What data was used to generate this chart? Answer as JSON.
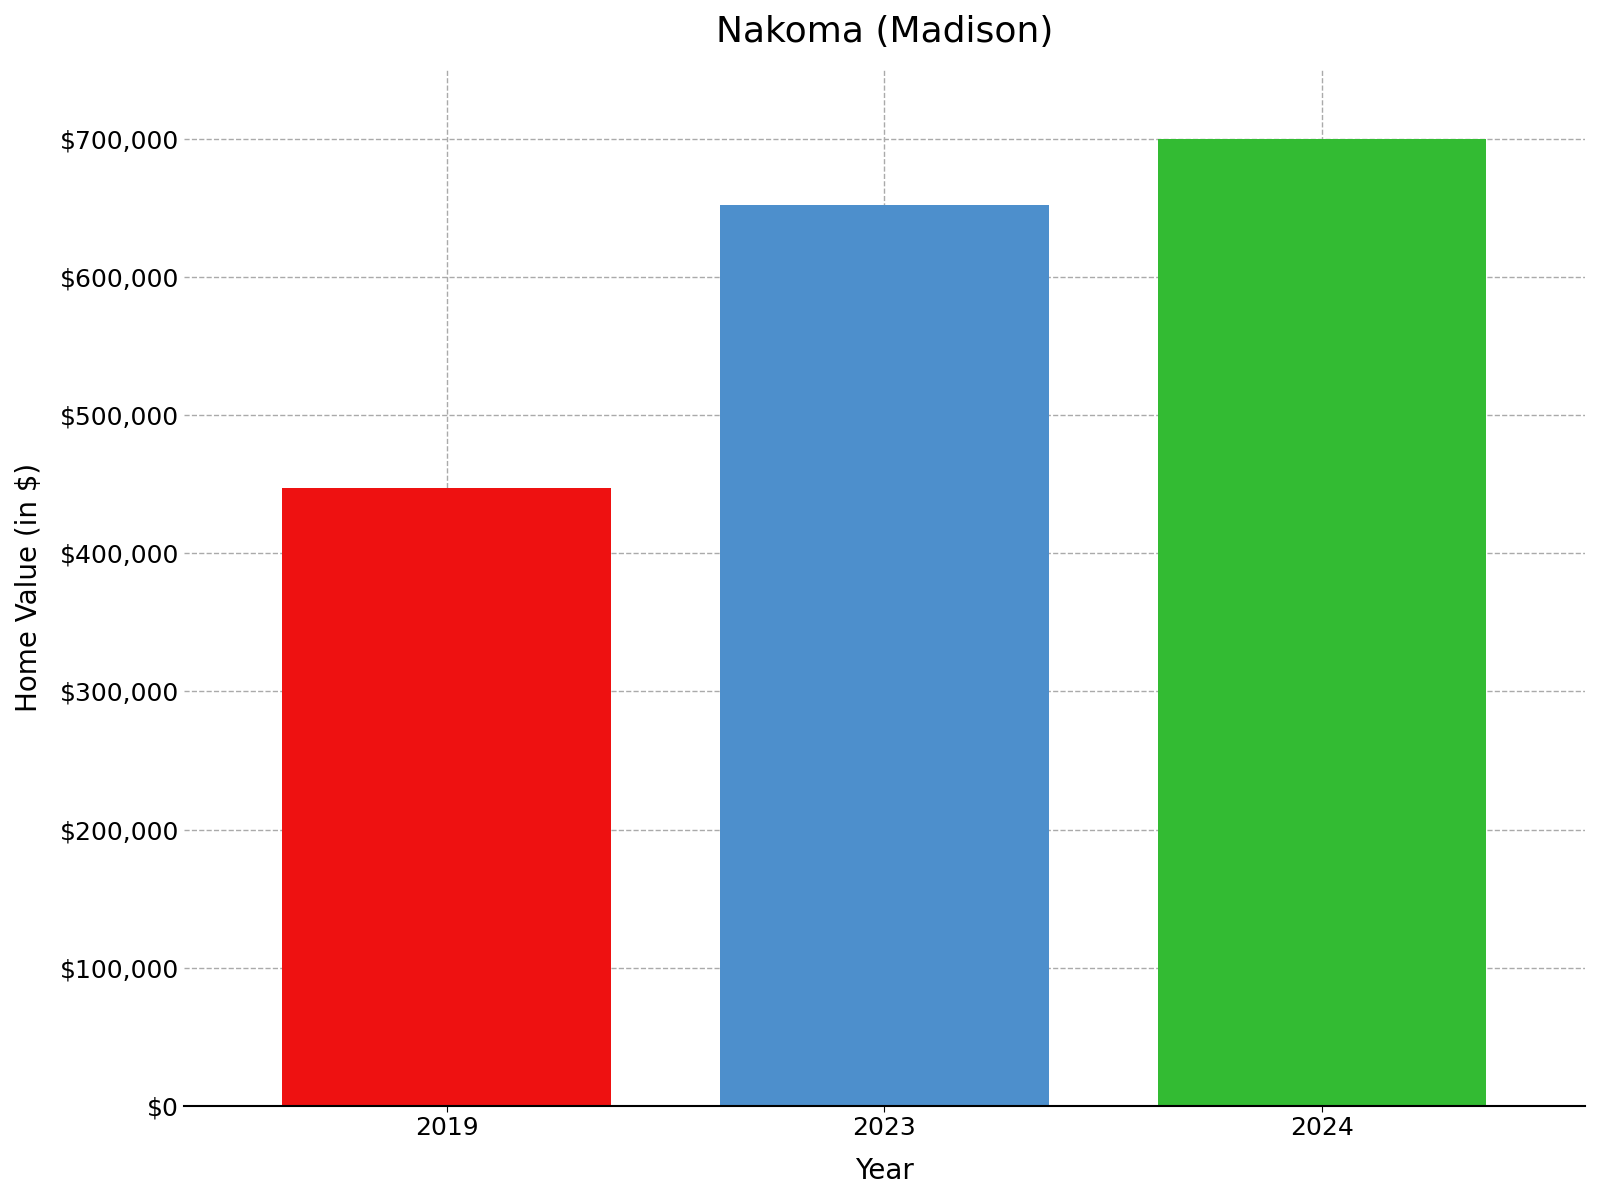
{
  "title": "Nakoma (Madison)",
  "categories": [
    "2019",
    "2023",
    "2024"
  ],
  "values": [
    447000,
    652000,
    700000
  ],
  "bar_colors": [
    "#ee1111",
    "#4d8fcc",
    "#33bb33"
  ],
  "xlabel": "Year",
  "ylabel": "Home Value (in $)",
  "ylim": [
    0,
    750000
  ],
  "yticks": [
    0,
    100000,
    200000,
    300000,
    400000,
    500000,
    600000,
    700000
  ],
  "title_fontsize": 26,
  "axis_label_fontsize": 20,
  "tick_fontsize": 18,
  "background_color": "#ffffff",
  "grid_color": "#aaaaaa",
  "bar_width": 0.75
}
